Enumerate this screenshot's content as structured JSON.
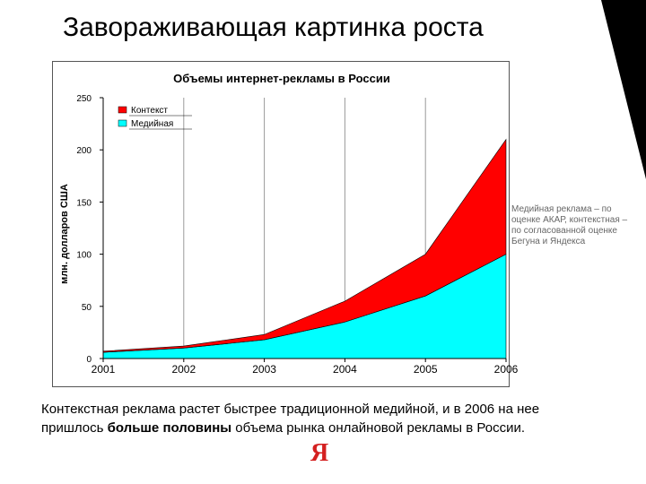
{
  "slide": {
    "title": "Завораживающая картинка роста",
    "note": "Медийная реклама – по оценке АКАР, контекстная – по согласованной оценке Бегуна и Яндекса",
    "caption_part1": "Контекстная реклама растет быстрее традиционной медийной, и в 2006 на нее пришлось ",
    "caption_bold": "больше половины",
    "caption_part2": " объема рынка онлайновой рекламы в России.",
    "logo_text": "Я"
  },
  "chart_data": {
    "type": "area",
    "stacked": true,
    "title": "Объемы интернет-рекламы в России",
    "ylabel": "млн. долларов США",
    "xlabel": "",
    "x": [
      "2001",
      "2002",
      "2003",
      "2004",
      "2005",
      "2006"
    ],
    "ylim": [
      0,
      250
    ],
    "yticks": [
      0,
      50,
      100,
      150,
      200,
      250
    ],
    "grid": "vertical",
    "legend_position": "top-left",
    "series": [
      {
        "name": "Медийная",
        "values": [
          6,
          10,
          18,
          35,
          60,
          100
        ],
        "color": "#00ffff"
      },
      {
        "name": "Контекст",
        "values": [
          1,
          2,
          5,
          20,
          40,
          110
        ],
        "color": "#ff0000"
      }
    ]
  }
}
